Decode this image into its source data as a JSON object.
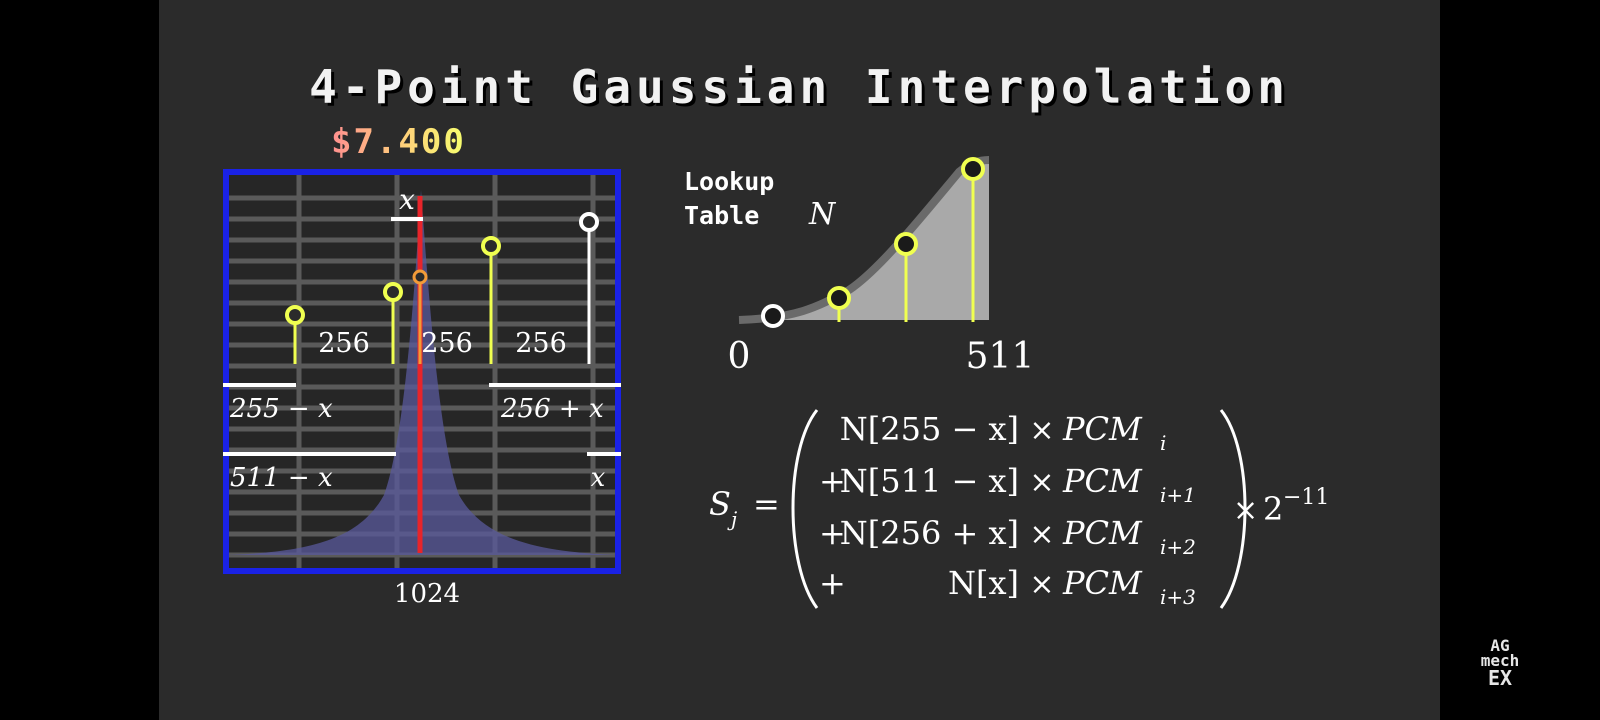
{
  "title": "4-Point Gaussian Interpolation",
  "price": "$7.400",
  "colors": {
    "background": "#2b2b2b",
    "frame_border": "#1a22e6",
    "marker_line": "#e8242a",
    "sample": "#f0ff50",
    "gaussian_fill": "#5a5a9c",
    "orange_dot": "#f29b38"
  },
  "left_panel": {
    "x_label": "x",
    "gap_labels": [
      "256",
      "256",
      "256"
    ],
    "offset_labels": {
      "a": "255 − x",
      "b": "256 + x",
      "c": "511 − x",
      "d": "x"
    },
    "width_label": "1024"
  },
  "lookup": {
    "label_line1": "Lookup",
    "label_line2": "Table",
    "label_var": "N",
    "axis_min": "0",
    "axis_max": "511"
  },
  "formula": {
    "lhs": "S",
    "lhs_sub": "j",
    "eq": "=",
    "rows": [
      {
        "prefix": "",
        "table": "N[255 − x]",
        "op": "×",
        "base": "PCM",
        "sub": "i"
      },
      {
        "prefix": "+",
        "table": "N[511 − x]",
        "op": "×",
        "base": "PCM",
        "sub": "i+1"
      },
      {
        "prefix": "+",
        "table": "N[256 + x]",
        "op": "×",
        "base": "PCM",
        "sub": "i+2"
      },
      {
        "prefix": "+",
        "table": "N[x]",
        "op": "×",
        "base": "PCM",
        "sub": "i+3"
      }
    ],
    "scale_times": "×",
    "scale_base": "2",
    "scale_exp": "−11"
  },
  "logo": {
    "line1": "AG",
    "line2": "mech",
    "line3": "EX"
  }
}
